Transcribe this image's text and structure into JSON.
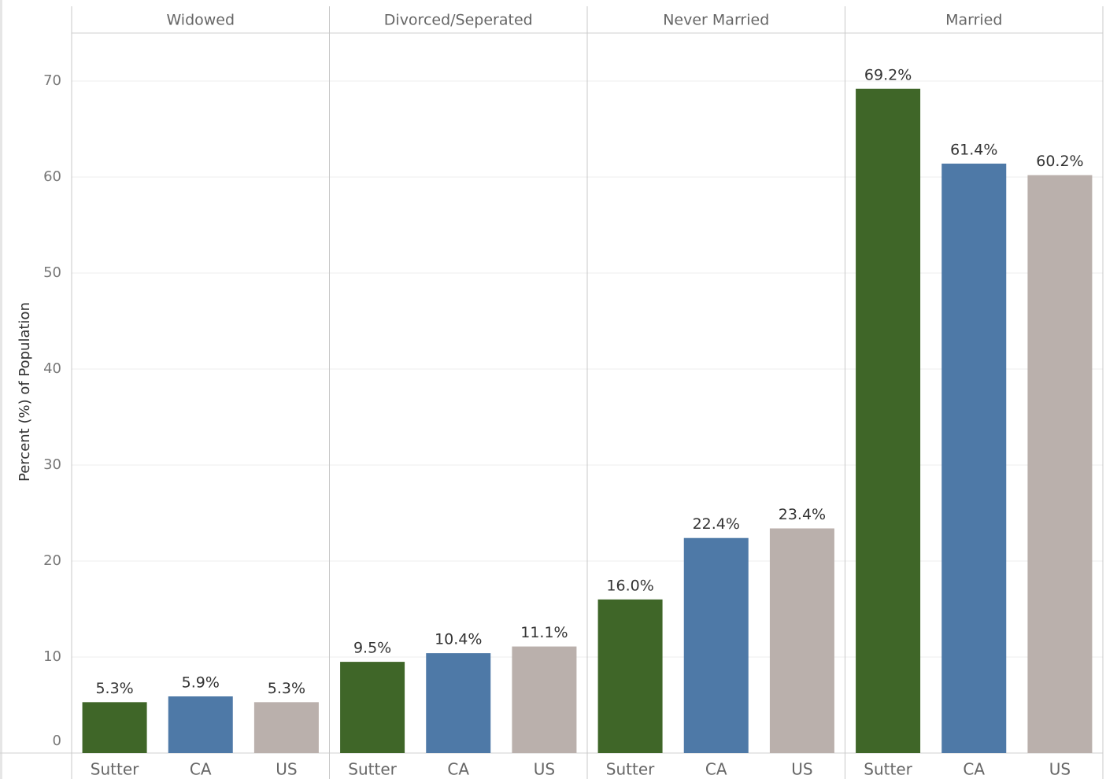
{
  "chart_data": {
    "type": "bar",
    "y_label": "Percent (%) of Population",
    "ylim": [
      0,
      75
    ],
    "yticks": [
      0,
      10,
      20,
      30,
      40,
      50,
      60,
      70
    ],
    "grid": true,
    "colors": [
      "#3f6628",
      "#4e79a7",
      "#bab0ac"
    ],
    "panels": [
      {
        "title": "Widowed",
        "categories": [
          "Sutter",
          "CA",
          "US"
        ],
        "values": [
          5.3,
          5.9,
          5.3
        ],
        "value_labels": [
          "5.3%",
          "5.9%",
          "5.3%"
        ]
      },
      {
        "title": "Divorced/Seperated",
        "categories": [
          "Sutter",
          "CA",
          "US"
        ],
        "values": [
          9.5,
          10.4,
          11.1
        ],
        "value_labels": [
          "9.5%",
          "10.4%",
          "11.1%"
        ]
      },
      {
        "title": "Never Married",
        "categories": [
          "Sutter",
          "CA",
          "US"
        ],
        "values": [
          16.0,
          22.4,
          23.4
        ],
        "value_labels": [
          "16.0%",
          "22.4%",
          "23.4%"
        ]
      },
      {
        "title": "Married",
        "categories": [
          "Sutter",
          "CA",
          "US"
        ],
        "values": [
          69.2,
          61.4,
          60.2
        ],
        "value_labels": [
          "69.2%",
          "61.4%",
          "60.2%"
        ]
      }
    ]
  }
}
